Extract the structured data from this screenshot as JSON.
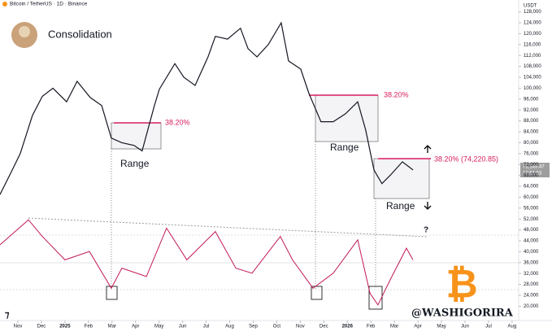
{
  "chart_data": {
    "type": "line",
    "title": "Consolidation",
    "subtitle": "Bitcoin / TetherUS · 1D · Binance",
    "y_axis_label": "USDT",
    "price_label": "71,149.47",
    "countdown": "12:51:53",
    "annotations": [
      "38.20%",
      "38.20%",
      "38.20% (74,220.85)",
      "Range",
      "Range",
      "Range",
      "?",
      "@WASHIGORIRA"
    ],
    "xlim": [
      -0.76,
      21.28
    ],
    "xticks": [
      {
        "value": 0,
        "label": "Nov"
      },
      {
        "value": 1,
        "label": "Dec"
      },
      {
        "value": 2,
        "label": "2025"
      },
      {
        "value": 3,
        "label": "Feb"
      },
      {
        "value": 4,
        "label": "Mar"
      },
      {
        "value": 5,
        "label": "Apr"
      },
      {
        "value": 6,
        "label": "May"
      },
      {
        "value": 7,
        "label": "Jun"
      },
      {
        "value": 8,
        "label": "Jul"
      },
      {
        "value": 9,
        "label": "Aug"
      },
      {
        "value": 10,
        "label": "Sep"
      },
      {
        "value": 11,
        "label": "Oct"
      },
      {
        "value": 12,
        "label": "Nov"
      },
      {
        "value": 13,
        "label": "Dec"
      },
      {
        "value": 14,
        "label": "2026"
      },
      {
        "value": 15,
        "label": "Feb"
      },
      {
        "value": 16,
        "label": "Mar"
      },
      {
        "value": 17,
        "label": "Apr"
      },
      {
        "value": 18,
        "label": "May"
      },
      {
        "value": 19,
        "label": "Jun"
      },
      {
        "value": 20,
        "label": "Jul"
      },
      {
        "value": 21,
        "label": "Aug"
      }
    ],
    "ylim": [
      14760,
      132350
    ],
    "yticks": [
      {
        "value": 20000,
        "label": "20,000"
      },
      {
        "value": 24000,
        "label": "24,000"
      },
      {
        "value": 28000,
        "label": "28,000"
      },
      {
        "value": 32000,
        "label": "32,000"
      },
      {
        "value": 36000,
        "label": "36,000"
      },
      {
        "value": 40000,
        "label": "40,000"
      },
      {
        "value": 44000,
        "label": "44,000"
      },
      {
        "value": 48000,
        "label": "48,000"
      },
      {
        "value": 52000,
        "label": "52,000"
      },
      {
        "value": 56000,
        "label": "56,000"
      },
      {
        "value": 60000,
        "label": "60,000"
      },
      {
        "value": 64000,
        "label": "64,000"
      },
      {
        "value": 68000,
        "label": "68,000"
      },
      {
        "value": 72000,
        "label": "72,000"
      },
      {
        "value": 76000,
        "label": "76,000"
      },
      {
        "value": 80000,
        "label": "80,000"
      },
      {
        "value": 84000,
        "label": "84,000"
      },
      {
        "value": 88000,
        "label": "88,000"
      },
      {
        "value": 92000,
        "label": "92,000"
      },
      {
        "value": 96000,
        "label": "96,000"
      },
      {
        "value": 100000,
        "label": "100,000"
      },
      {
        "value": 104000,
        "label": "104,000"
      },
      {
        "value": 108000,
        "label": "108,000"
      },
      {
        "value": 112000,
        "label": "112,000"
      },
      {
        "value": 116000,
        "label": "116,000"
      },
      {
        "value": 120000,
        "label": "120,000"
      },
      {
        "value": 124000,
        "label": "124,000"
      },
      {
        "value": 128000,
        "label": "128,000"
      }
    ],
    "y2lim": [
      20,
      80
    ],
    "series": [
      {
        "color": "#131722",
        "x": [
          -0.76,
          -0.24,
          0.1,
          0.62,
          1.04,
          1.49,
          2.07,
          2.52,
          3.07,
          3.56,
          3.97,
          4.42,
          4.94,
          5.28,
          5.8,
          6.01,
          6.67,
          7.05,
          7.53,
          8.08,
          8.39,
          8.91,
          9.46,
          9.78,
          10.16,
          10.64,
          11.19,
          11.5,
          12.02,
          12.37,
          12.88,
          13.4,
          13.92,
          14.44,
          14.78,
          15.13,
          15.47,
          15.82,
          16.34,
          16.79
        ],
        "values": [
          61000,
          70000,
          76000,
          90000,
          97000,
          100000,
          95000,
          102500,
          96600,
          93600,
          81700,
          80000,
          79000,
          77000,
          93600,
          99600,
          109000,
          104000,
          101000,
          111500,
          119000,
          118000,
          122000,
          114500,
          111500,
          116000,
          124000,
          110000,
          107000,
          98000,
          87700,
          87700,
          90600,
          95000,
          84700,
          70000,
          65000,
          68000,
          73000,
          70000
        ]
      },
      {
        "color": "#c2185b",
        "axis": "y2",
        "x": [
          -0.76,
          0.45,
          1.04,
          2.0,
          3.04,
          3.97,
          4.42,
          5.46,
          6.32,
          7.18,
          8.39,
          9.26,
          9.95,
          11.15,
          11.67,
          12.54,
          13.4,
          14.44,
          14.96,
          15.3,
          15.82,
          16.51,
          16.79
        ],
        "values": [
          61,
          76,
          66,
          52,
          57,
          35,
          47,
          42,
          71,
          52,
          69,
          47,
          44,
          66,
          52,
          35,
          44,
          64,
          32,
          25,
          40,
          59,
          52
        ]
      }
    ]
  }
}
